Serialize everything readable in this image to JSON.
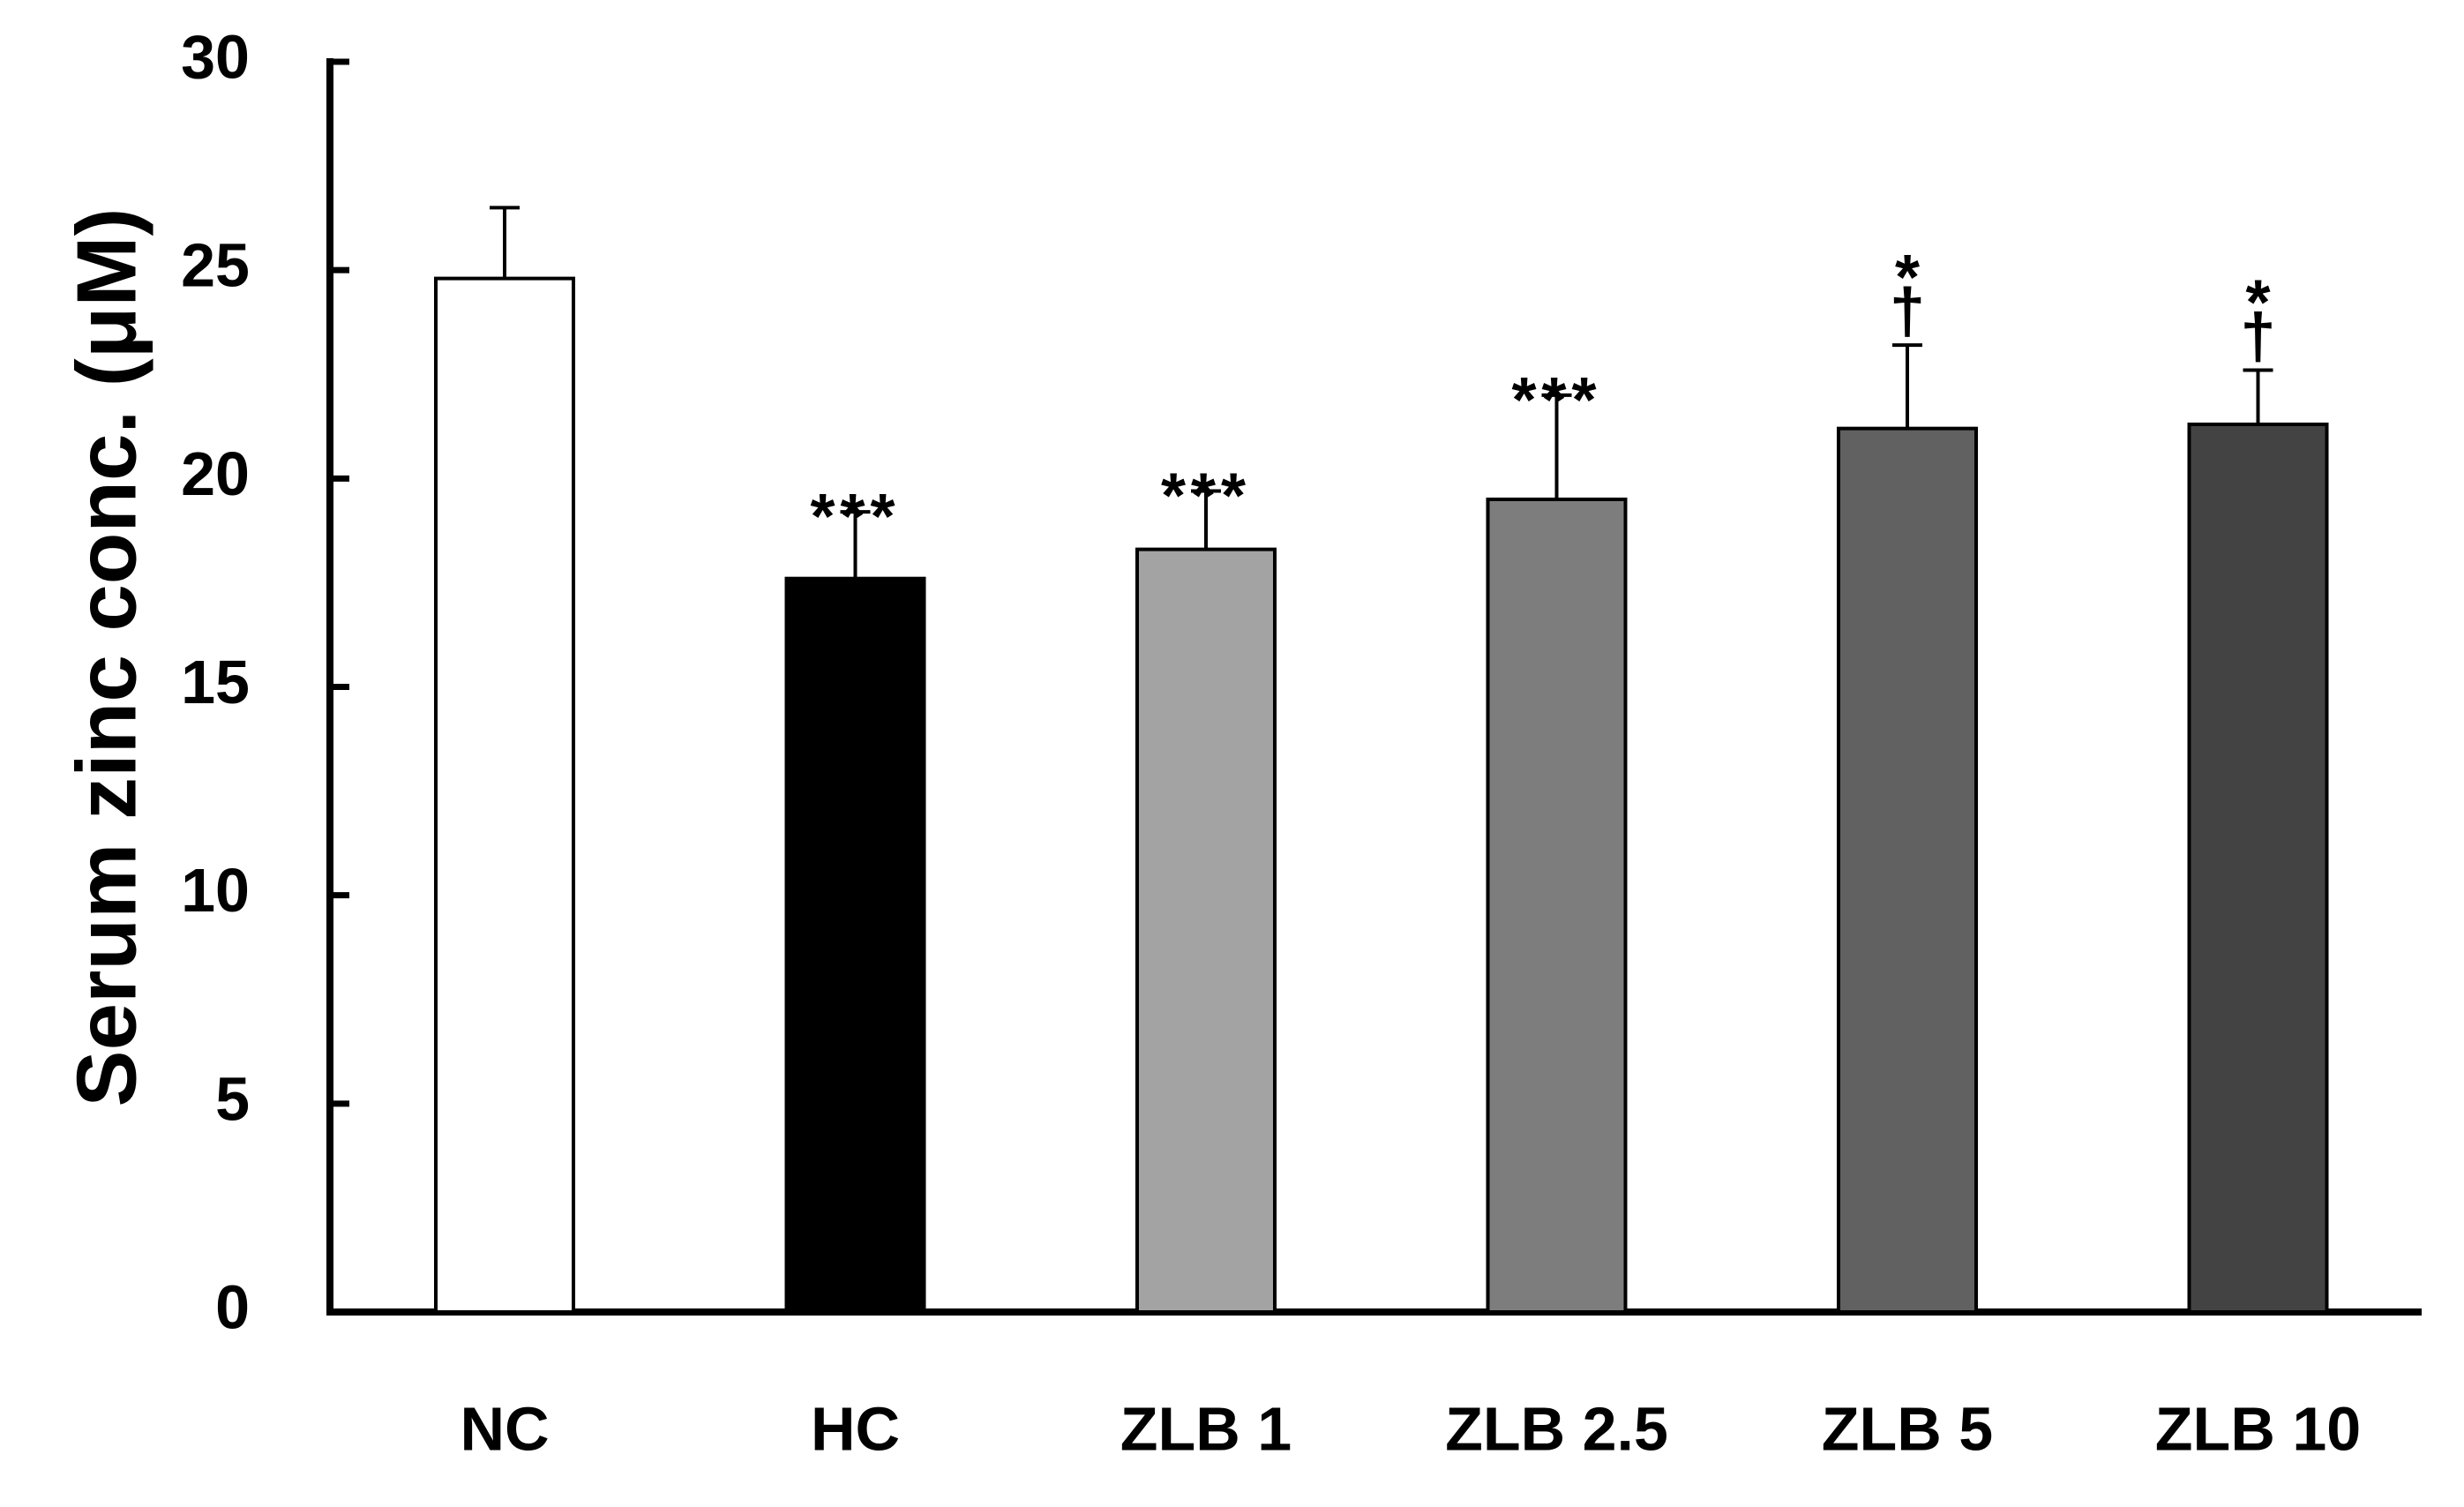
{
  "chart_data": {
    "type": "bar",
    "title": "",
    "xlabel": "",
    "ylabel": "Serum zinc conc.   (μM)",
    "ylim": [
      0,
      30
    ],
    "yticks": [
      0,
      5,
      10,
      15,
      20,
      25,
      30
    ],
    "grid": false,
    "legend": "none",
    "categories": [
      "NC",
      "HC",
      "ZLB 1",
      "ZLB 2.5",
      "ZLB 5",
      "ZLB 10"
    ],
    "values": [
      24.8,
      17.6,
      18.3,
      19.5,
      21.2,
      21.3
    ],
    "errors": [
      1.7,
      1.6,
      1.4,
      2.5,
      2.0,
      1.3
    ],
    "colors": [
      "#ffffff",
      "#000000",
      "#a3a3a3",
      "#7d7d7d",
      "#616161",
      "#434343"
    ],
    "significance_primary": [
      "",
      "***",
      "***",
      "***",
      "*",
      "*"
    ],
    "significance_secondary": [
      "",
      "",
      "",
      "",
      "†",
      "†"
    ]
  }
}
